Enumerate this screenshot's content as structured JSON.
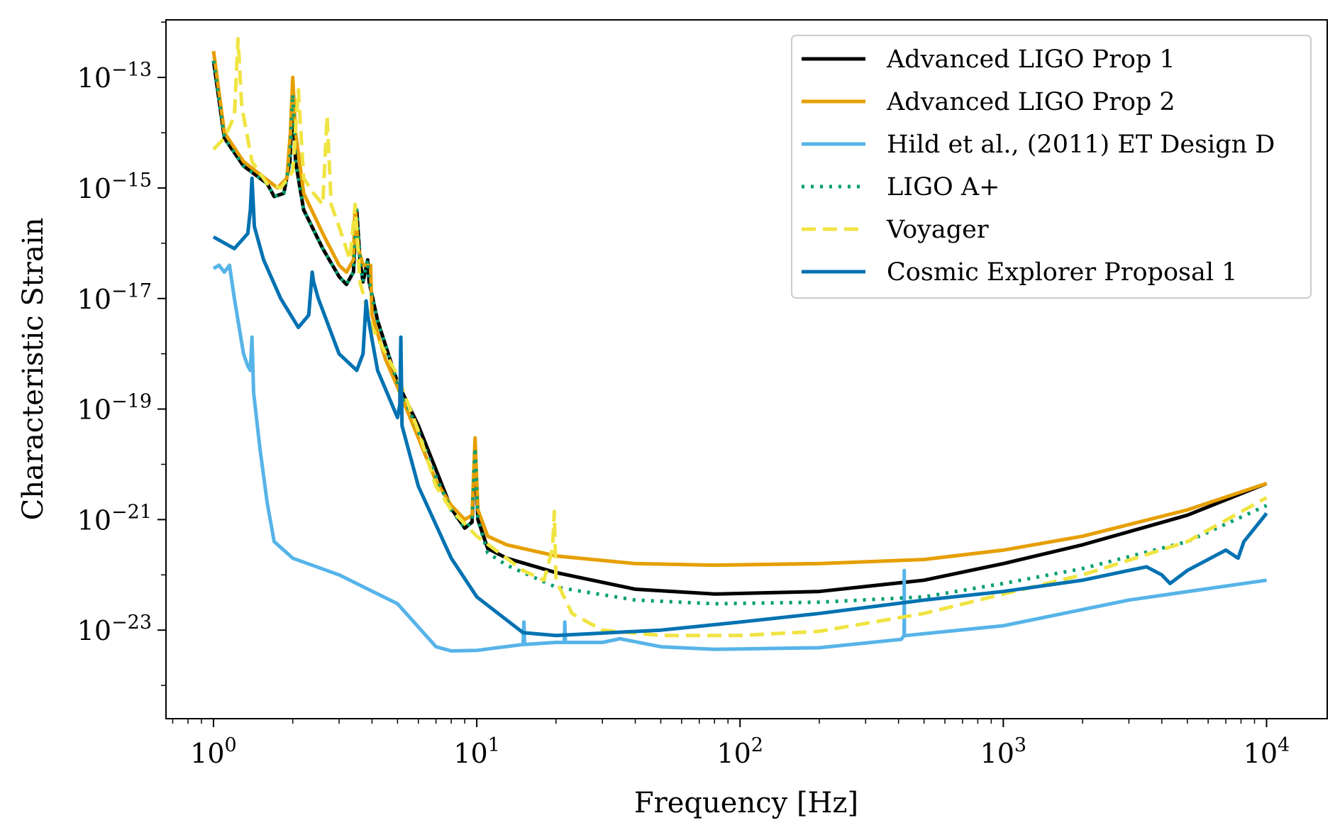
{
  "chart_data": {
    "type": "line",
    "title": "",
    "xlabel": "Frequency [Hz]",
    "ylabel": "Characteristic Strain",
    "x_scale": "log",
    "y_scale": "log",
    "xlim": [
      0.66,
      17000
    ],
    "ylim": [
      2.5e-25,
      1.1e-12
    ],
    "x_ticks": [
      {
        "value": 1,
        "base": "10",
        "exp": "0"
      },
      {
        "value": 10,
        "base": "10",
        "exp": "1"
      },
      {
        "value": 100,
        "base": "10",
        "exp": "2"
      },
      {
        "value": 1000,
        "base": "10",
        "exp": "3"
      },
      {
        "value": 10000,
        "base": "10",
        "exp": "4"
      }
    ],
    "y_ticks": [
      {
        "value": 1e-13,
        "base": "10",
        "exp": "−13"
      },
      {
        "value": 1e-15,
        "base": "10",
        "exp": "−15"
      },
      {
        "value": 1e-17,
        "base": "10",
        "exp": "−17"
      },
      {
        "value": 1e-19,
        "base": "10",
        "exp": "−19"
      },
      {
        "value": 1e-21,
        "base": "10",
        "exp": "−21"
      },
      {
        "value": 1e-23,
        "base": "10",
        "exp": "−23"
      }
    ],
    "grid": false,
    "legend_position": "top-right",
    "series": [
      {
        "name": "Advanced LIGO Prop 1",
        "color": "#000000",
        "style": "solid",
        "points": [
          [
            1,
            2e-13
          ],
          [
            1.1,
            8e-15
          ],
          [
            1.3,
            2.5e-15
          ],
          [
            1.6,
            1.2e-15
          ],
          [
            1.7,
            7e-16
          ],
          [
            1.85,
            8e-16
          ],
          [
            1.95,
            3e-15
          ],
          [
            2.0,
            5e-14
          ],
          [
            2.05,
            3e-15
          ],
          [
            2.2,
            4e-16
          ],
          [
            2.6,
            8e-17
          ],
          [
            3.0,
            2.5e-17
          ],
          [
            3.2,
            1.8e-17
          ],
          [
            3.4,
            3e-17
          ],
          [
            3.5,
            4e-16
          ],
          [
            3.6,
            5e-17
          ],
          [
            3.7,
            2e-17
          ],
          [
            3.85,
            5e-17
          ],
          [
            3.9,
            2e-17
          ],
          [
            4.2,
            4e-18
          ],
          [
            5,
            3e-19
          ],
          [
            6,
            5e-20
          ],
          [
            7,
            8e-21
          ],
          [
            8,
            1.6e-21
          ],
          [
            9,
            7e-22
          ],
          [
            9.6,
            9e-22
          ],
          [
            9.85,
            2e-20
          ],
          [
            10.1,
            1e-21
          ],
          [
            11,
            3e-22
          ],
          [
            13,
            2e-22
          ],
          [
            20,
            1.1e-22
          ],
          [
            40,
            5.5e-23
          ],
          [
            80,
            4.5e-23
          ],
          [
            200,
            5e-23
          ],
          [
            500,
            8e-23
          ],
          [
            1000,
            1.6e-22
          ],
          [
            2000,
            3.5e-22
          ],
          [
            5000,
            1.2e-21
          ],
          [
            10000,
            4.5e-21
          ]
        ]
      },
      {
        "name": "Advanced LIGO Prop 2",
        "color": "#E69F00",
        "style": "solid",
        "points": [
          [
            1,
            3e-13
          ],
          [
            1.1,
            1e-14
          ],
          [
            1.3,
            3e-15
          ],
          [
            1.6,
            1.4e-15
          ],
          [
            1.75,
            1e-15
          ],
          [
            1.9,
            1.5e-15
          ],
          [
            1.96,
            1e-14
          ],
          [
            2.0,
            1e-13
          ],
          [
            2.05,
            1e-14
          ],
          [
            2.2,
            8e-16
          ],
          [
            2.6,
            1.5e-16
          ],
          [
            3.0,
            4e-17
          ],
          [
            3.2,
            3e-17
          ],
          [
            3.4,
            5e-17
          ],
          [
            3.45,
            5e-16
          ],
          [
            3.55,
            8e-17
          ],
          [
            3.7,
            4e-17
          ],
          [
            3.9,
            4e-17
          ],
          [
            3.95,
            4e-17
          ],
          [
            4.0,
            5e-18
          ],
          [
            4.5,
            8e-19
          ],
          [
            5,
            2.5e-19
          ],
          [
            6,
            3e-20
          ],
          [
            7,
            5e-21
          ],
          [
            8,
            1.8e-21
          ],
          [
            9,
            1e-21
          ],
          [
            9.6,
            1.2e-21
          ],
          [
            9.85,
            3e-20
          ],
          [
            10.1,
            1.5e-21
          ],
          [
            11,
            5e-22
          ],
          [
            13,
            3.5e-22
          ],
          [
            20,
            2.2e-22
          ],
          [
            40,
            1.6e-22
          ],
          [
            80,
            1.5e-22
          ],
          [
            200,
            1.6e-22
          ],
          [
            500,
            1.9e-22
          ],
          [
            1000,
            2.8e-22
          ],
          [
            2000,
            5e-22
          ],
          [
            5000,
            1.5e-21
          ],
          [
            10000,
            4.5e-21
          ]
        ]
      },
      {
        "name": "Hild et al., (2011) ET Design D",
        "color": "#56B4E9",
        "style": "solid",
        "points": [
          [
            1,
            3.5e-17
          ],
          [
            1.05,
            4e-17
          ],
          [
            1.1,
            3e-17
          ],
          [
            1.15,
            4e-17
          ],
          [
            1.2,
            1e-17
          ],
          [
            1.3,
            1e-18
          ],
          [
            1.35,
            6e-19
          ],
          [
            1.38,
            5e-19
          ],
          [
            1.4,
            2e-18
          ],
          [
            1.42,
            2e-19
          ],
          [
            1.5,
            2e-20
          ],
          [
            1.6,
            2e-21
          ],
          [
            1.7,
            4e-22
          ],
          [
            2,
            2e-22
          ],
          [
            3,
            1e-22
          ],
          [
            5,
            3e-23
          ],
          [
            7,
            5e-24
          ],
          [
            8,
            4.2e-24
          ],
          [
            10,
            4.3e-24
          ],
          [
            15,
            5.5e-24
          ],
          [
            15.1,
            1.4e-23
          ],
          [
            15.2,
            5.5e-24
          ],
          [
            20,
            6e-24
          ],
          [
            21.5,
            6e-24
          ],
          [
            21.6,
            1.4e-23
          ],
          [
            21.7,
            6e-24
          ],
          [
            30,
            6e-24
          ],
          [
            35,
            7e-24
          ],
          [
            50,
            5e-24
          ],
          [
            80,
            4.5e-24
          ],
          [
            200,
            4.8e-24
          ],
          [
            410,
            6.8e-24
          ],
          [
            420,
            8e-24
          ],
          [
            420.5,
            1.2e-22
          ],
          [
            421,
            8e-24
          ],
          [
            430,
            8e-24
          ],
          [
            1000,
            1.2e-23
          ],
          [
            3000,
            3.5e-23
          ],
          [
            10000,
            8e-23
          ]
        ]
      },
      {
        "name": "LIGO A+",
        "color": "#009E73",
        "style": "dotted",
        "points": [
          [
            1,
            2e-13
          ],
          [
            1.1,
            8e-15
          ],
          [
            1.3,
            2.5e-15
          ],
          [
            1.6,
            1.2e-15
          ],
          [
            1.7,
            7e-16
          ],
          [
            1.85,
            8e-16
          ],
          [
            1.95,
            3e-15
          ],
          [
            2.0,
            5e-14
          ],
          [
            2.05,
            3e-15
          ],
          [
            2.2,
            4e-16
          ],
          [
            2.6,
            8e-17
          ],
          [
            3.0,
            2.5e-17
          ],
          [
            3.2,
            1.8e-17
          ],
          [
            3.4,
            3e-17
          ],
          [
            3.5,
            4e-16
          ],
          [
            3.6,
            5e-17
          ],
          [
            3.7,
            2e-17
          ],
          [
            3.85,
            5e-17
          ],
          [
            3.9,
            2e-17
          ],
          [
            4.2,
            4e-18
          ],
          [
            5,
            3e-19
          ],
          [
            6,
            4e-20
          ],
          [
            7,
            6e-21
          ],
          [
            8,
            1.5e-21
          ],
          [
            9,
            7e-22
          ],
          [
            9.6,
            9e-22
          ],
          [
            9.85,
            2e-20
          ],
          [
            10.1,
            1e-21
          ],
          [
            11,
            2.5e-22
          ],
          [
            13,
            1.5e-22
          ],
          [
            20,
            6e-23
          ],
          [
            40,
            3.5e-23
          ],
          [
            80,
            3e-23
          ],
          [
            200,
            3.2e-23
          ],
          [
            500,
            4e-23
          ],
          [
            1000,
            7e-23
          ],
          [
            2000,
            1.3e-22
          ],
          [
            5000,
            4e-22
          ],
          [
            10000,
            1.8e-21
          ]
        ]
      },
      {
        "name": "Voyager",
        "color": "#F0E442",
        "style": "dashed",
        "points": [
          [
            1,
            5e-15
          ],
          [
            1.1,
            8e-15
          ],
          [
            1.2,
            2e-14
          ],
          [
            1.24,
            5e-13
          ],
          [
            1.28,
            3e-14
          ],
          [
            1.4,
            3e-15
          ],
          [
            1.6,
            1.2e-15
          ],
          [
            1.8,
            1e-15
          ],
          [
            2.0,
            2e-15
          ],
          [
            2.1,
            6e-14
          ],
          [
            2.2,
            1.5e-15
          ],
          [
            2.4,
            8e-16
          ],
          [
            2.6,
            5e-16
          ],
          [
            2.7,
            2e-14
          ],
          [
            2.8,
            5e-16
          ],
          [
            3,
            2e-16
          ],
          [
            3.3,
            5e-17
          ],
          [
            3.45,
            5e-16
          ],
          [
            3.6,
            2e-17
          ],
          [
            4,
            3e-18
          ],
          [
            5,
            4e-19
          ],
          [
            6,
            4e-20
          ],
          [
            7,
            4e-21
          ],
          [
            8,
            1.5e-21
          ],
          [
            10,
            5e-22
          ],
          [
            15,
            1.2e-22
          ],
          [
            18,
            8e-23
          ],
          [
            19.4,
            3e-22
          ],
          [
            19.7,
            1.4e-21
          ],
          [
            20,
            8e-23
          ],
          [
            23,
            2e-23
          ],
          [
            30,
            1e-23
          ],
          [
            50,
            8e-24
          ],
          [
            100,
            8e-24
          ],
          [
            200,
            9.5e-24
          ],
          [
            500,
            2e-23
          ],
          [
            1000,
            4.5e-23
          ],
          [
            2000,
            1e-22
          ],
          [
            5000,
            4e-22
          ],
          [
            10000,
            2.5e-21
          ]
        ]
      },
      {
        "name": "Cosmic Explorer Proposal 1",
        "color": "#0072B2",
        "style": "solid",
        "points": [
          [
            1,
            1.3e-16
          ],
          [
            1.2,
            8e-17
          ],
          [
            1.35,
            1.5e-16
          ],
          [
            1.38,
            4e-16
          ],
          [
            1.4,
            1.5e-15
          ],
          [
            1.43,
            2e-16
          ],
          [
            1.55,
            5e-17
          ],
          [
            1.8,
            1e-17
          ],
          [
            2.1,
            3e-18
          ],
          [
            2.3,
            5e-18
          ],
          [
            2.37,
            3e-17
          ],
          [
            2.4,
            2e-17
          ],
          [
            2.5,
            1e-17
          ],
          [
            3,
            1e-18
          ],
          [
            3.5,
            5e-19
          ],
          [
            3.7,
            1e-18
          ],
          [
            3.8,
            9e-18
          ],
          [
            3.85,
            5e-18
          ],
          [
            4.2,
            5e-19
          ],
          [
            5,
            7e-20
          ],
          [
            5.1,
            1.2e-19
          ],
          [
            5.15,
            2e-18
          ],
          [
            5.2,
            5e-20
          ],
          [
            6,
            4e-21
          ],
          [
            8,
            2e-22
          ],
          [
            10,
            4e-23
          ],
          [
            15,
            9e-24
          ],
          [
            20,
            8e-24
          ],
          [
            50,
            1e-23
          ],
          [
            100,
            1.4e-23
          ],
          [
            200,
            2e-23
          ],
          [
            500,
            3.5e-23
          ],
          [
            1000,
            5e-23
          ],
          [
            2000,
            8e-23
          ],
          [
            3000,
            1.2e-22
          ],
          [
            3500,
            1.4e-22
          ],
          [
            4000,
            1e-22
          ],
          [
            4300,
            7e-23
          ],
          [
            5000,
            1.2e-22
          ],
          [
            7000,
            2.8e-22
          ],
          [
            7800,
            2e-22
          ],
          [
            8200,
            4e-22
          ],
          [
            10000,
            1.3e-21
          ]
        ]
      }
    ]
  }
}
